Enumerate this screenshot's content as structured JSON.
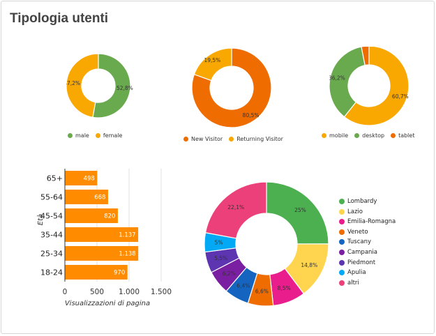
{
  "title": "Tipologia utenti",
  "colors": {
    "green": "#6aaa4e",
    "orange": "#f2a300",
    "dark_orange": "#ef6c00"
  },
  "chart_data": [
    {
      "type": "pie",
      "variant": "donut",
      "labels": [
        "male",
        "female"
      ],
      "values": [
        52.8,
        47.2
      ],
      "display": [
        "52,8%",
        "47,2%"
      ],
      "colors": [
        "#6aaa4e",
        "#f8a800"
      ]
    },
    {
      "type": "pie",
      "variant": "donut",
      "labels": [
        "New Visitor",
        "Returning Visitor"
      ],
      "values": [
        80.5,
        19.5
      ],
      "display": [
        "80,5%",
        "19,5%"
      ],
      "colors": [
        "#ef6c00",
        "#f8a800"
      ]
    },
    {
      "type": "pie",
      "variant": "donut",
      "labels": [
        "mobile",
        "desktop",
        "tablet"
      ],
      "values": [
        60.7,
        36.2,
        3.1
      ],
      "display": [
        "60,7%",
        "36,2%",
        ""
      ],
      "colors": [
        "#f8a800",
        "#6aaa4e",
        "#ef6c00"
      ]
    },
    {
      "type": "bar",
      "orientation": "horizontal",
      "categories": [
        "65+",
        "55-64",
        "45-54",
        "35-44",
        "25-34",
        "18-24"
      ],
      "values": [
        498,
        668,
        820,
        1137,
        1138,
        970
      ],
      "display": [
        "498",
        "668",
        "820",
        "1.137",
        "1.138",
        "970"
      ],
      "xlabel": "Visualizzazioni di pagina",
      "ylabel": "Età",
      "xlim": [
        0,
        1500
      ],
      "xticks": [
        "0",
        "500",
        "1.000",
        "1.500"
      ],
      "grid": true,
      "color": "#ff8c00"
    },
    {
      "type": "pie",
      "variant": "donut",
      "labels": [
        "Lombardy",
        "Lazio",
        "Emilia-Romagna",
        "Veneto",
        "Tuscany",
        "Campania",
        "Piedmont",
        "Apulia",
        "altri"
      ],
      "values": [
        25,
        14.8,
        8.5,
        6.6,
        6.4,
        6.2,
        5.5,
        5,
        22.1
      ],
      "display": [
        "25%",
        "14,8%",
        "8,5%",
        "6,6%",
        "6,4%",
        "6,2%",
        "5,5%",
        "5%",
        "22,1%"
      ],
      "colors": [
        "#4caf50",
        "#ffd54f",
        "#e91e8c",
        "#ef6c00",
        "#1565c0",
        "#7b1fa2",
        "#5e35b1",
        "#03a9f4",
        "#ec407a"
      ],
      "legend_position": "right"
    }
  ]
}
